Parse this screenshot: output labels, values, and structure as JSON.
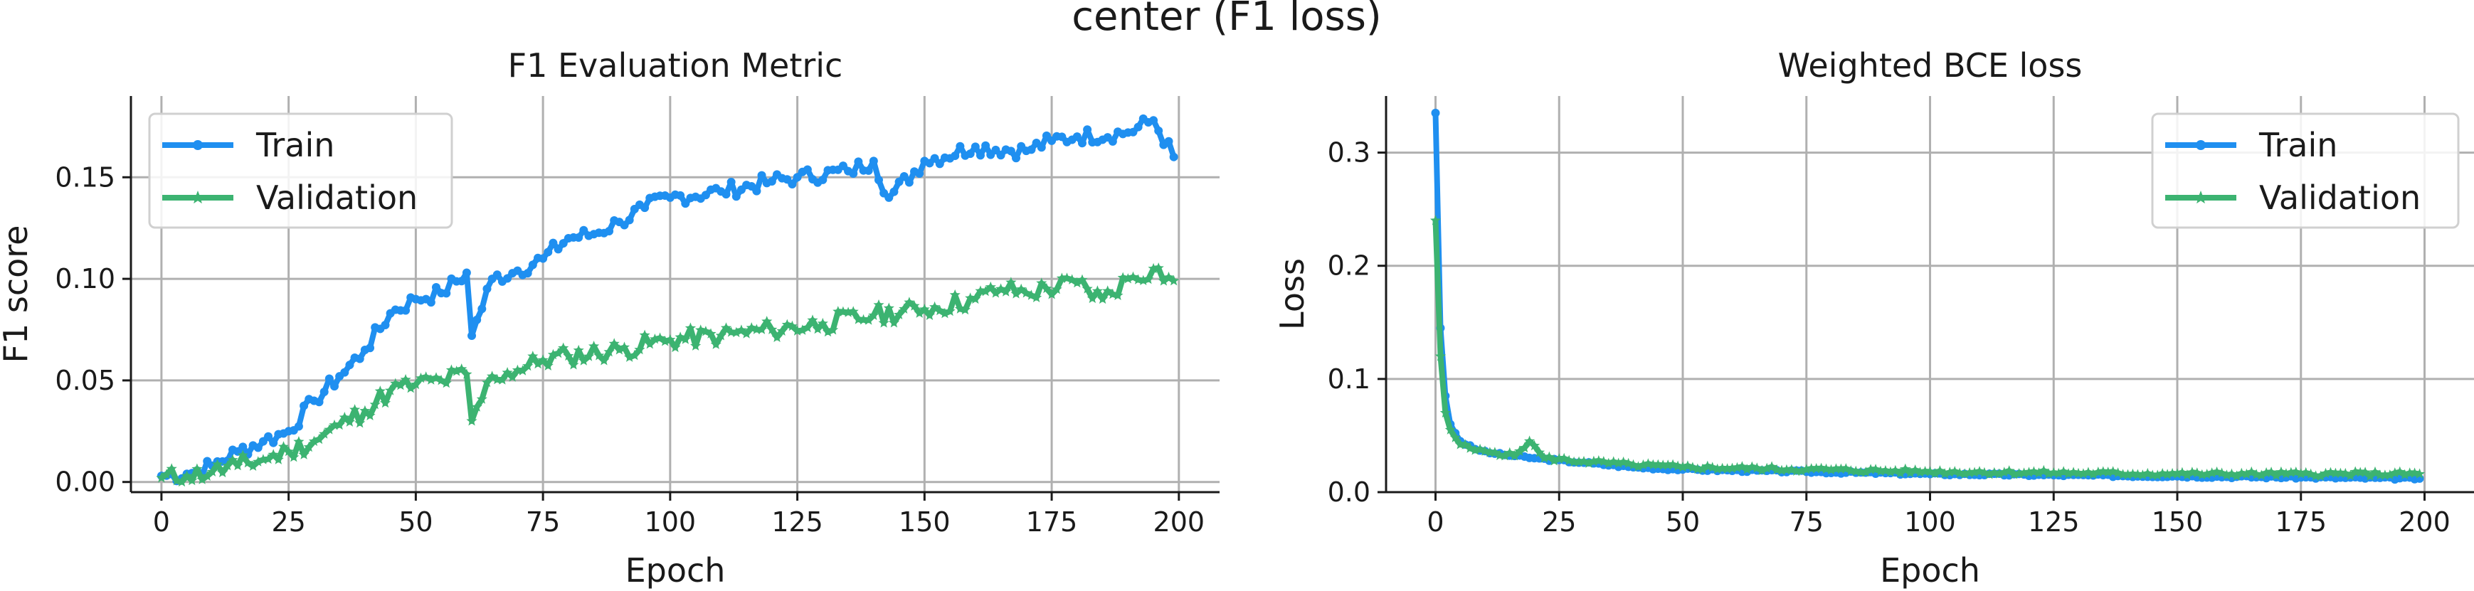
{
  "figure": {
    "title": "center (F1 loss)"
  },
  "colors": {
    "train": "#1f8ff0",
    "validation": "#3cb371"
  },
  "chart_data": [
    {
      "type": "line",
      "title": "F1 Evaluation Metric",
      "xlabel": "Epoch",
      "ylabel": "F1 score",
      "xlim": [
        -6,
        208
      ],
      "ylim": [
        -0.005,
        0.19
      ],
      "xticks": [
        0,
        25,
        50,
        75,
        100,
        125,
        150,
        175,
        200
      ],
      "yticks": [
        0.0,
        0.05,
        0.1,
        0.15
      ],
      "ytick_labels": [
        "0.00",
        "0.05",
        "0.10",
        "0.15"
      ],
      "grid": true,
      "legend": "upper-left",
      "series": [
        {
          "name": "Train",
          "key": "train",
          "marker": "circle",
          "keypoints": [
            [
              0,
              0.003
            ],
            [
              5,
              0.004
            ],
            [
              10,
              0.008
            ],
            [
              15,
              0.015
            ],
            [
              20,
              0.02
            ],
            [
              25,
              0.025
            ],
            [
              30,
              0.04
            ],
            [
              35,
              0.052
            ],
            [
              40,
              0.065
            ],
            [
              45,
              0.083
            ],
            [
              50,
              0.09
            ],
            [
              55,
              0.093
            ],
            [
              60,
              0.103
            ],
            [
              61,
              0.072
            ],
            [
              65,
              0.1
            ],
            [
              70,
              0.104
            ],
            [
              75,
              0.11
            ],
            [
              80,
              0.12
            ],
            [
              85,
              0.122
            ],
            [
              90,
              0.128
            ],
            [
              95,
              0.135
            ],
            [
              100,
              0.14
            ],
            [
              110,
              0.143
            ],
            [
              120,
              0.148
            ],
            [
              125,
              0.15
            ],
            [
              135,
              0.153
            ],
            [
              140,
              0.158
            ],
            [
              143,
              0.14
            ],
            [
              150,
              0.158
            ],
            [
              160,
              0.165
            ],
            [
              170,
              0.163
            ],
            [
              175,
              0.168
            ],
            [
              180,
              0.17
            ],
            [
              190,
              0.172
            ],
            [
              195,
              0.178
            ],
            [
              199,
              0.16
            ]
          ],
          "noise": 0.004,
          "seed": 7
        },
        {
          "name": "Validation",
          "key": "validation",
          "marker": "star",
          "keypoints": [
            [
              0,
              0.002
            ],
            [
              5,
              0.003
            ],
            [
              10,
              0.005
            ],
            [
              15,
              0.008
            ],
            [
              20,
              0.011
            ],
            [
              25,
              0.015
            ],
            [
              30,
              0.02
            ],
            [
              35,
              0.028
            ],
            [
              40,
              0.035
            ],
            [
              45,
              0.045
            ],
            [
              50,
              0.048
            ],
            [
              55,
              0.05
            ],
            [
              60,
              0.053
            ],
            [
              61,
              0.03
            ],
            [
              65,
              0.052
            ],
            [
              70,
              0.055
            ],
            [
              75,
              0.06
            ],
            [
              80,
              0.062
            ],
            [
              90,
              0.065
            ],
            [
              100,
              0.07
            ],
            [
              110,
              0.072
            ],
            [
              120,
              0.075
            ],
            [
              130,
              0.078
            ],
            [
              140,
              0.082
            ],
            [
              150,
              0.085
            ],
            [
              160,
              0.09
            ],
            [
              165,
              0.095
            ],
            [
              170,
              0.093
            ],
            [
              180,
              0.098
            ],
            [
              185,
              0.09
            ],
            [
              190,
              0.1
            ],
            [
              195,
              0.105
            ],
            [
              199,
              0.099
            ]
          ],
          "noise": 0.005,
          "seed": 11
        }
      ]
    },
    {
      "type": "line",
      "title": "Weighted BCE loss",
      "xlabel": "Epoch",
      "ylabel": "Loss",
      "xlim": [
        -10,
        210
      ],
      "ylim": [
        0,
        0.35
      ],
      "xticks": [
        0,
        25,
        50,
        75,
        100,
        125,
        150,
        175,
        200
      ],
      "yticks": [
        0.0,
        0.1,
        0.2,
        0.3
      ],
      "ytick_labels": [
        "0.0",
        "0.1",
        "0.2",
        "0.3"
      ],
      "grid": true,
      "legend": "upper-right",
      "series": [
        {
          "name": "Train",
          "key": "train",
          "marker": "circle",
          "keypoints": [
            [
              0,
              0.335
            ],
            [
              1,
              0.145
            ],
            [
              2,
              0.085
            ],
            [
              3,
              0.06
            ],
            [
              5,
              0.045
            ],
            [
              8,
              0.038
            ],
            [
              12,
              0.034
            ],
            [
              20,
              0.03
            ],
            [
              30,
              0.026
            ],
            [
              40,
              0.022
            ],
            [
              50,
              0.02
            ],
            [
              75,
              0.018
            ],
            [
              100,
              0.016
            ],
            [
              125,
              0.015
            ],
            [
              150,
              0.014
            ],
            [
              175,
              0.013
            ],
            [
              199,
              0.012
            ]
          ],
          "noise": 0.001,
          "seed": 3
        },
        {
          "name": "Validation",
          "key": "validation",
          "marker": "star",
          "keypoints": [
            [
              0,
              0.24
            ],
            [
              1,
              0.12
            ],
            [
              2,
              0.07
            ],
            [
              3,
              0.055
            ],
            [
              5,
              0.042
            ],
            [
              8,
              0.037
            ],
            [
              12,
              0.035
            ],
            [
              16,
              0.032
            ],
            [
              19,
              0.045
            ],
            [
              22,
              0.03
            ],
            [
              30,
              0.027
            ],
            [
              40,
              0.024
            ],
            [
              50,
              0.022
            ],
            [
              75,
              0.02
            ],
            [
              100,
              0.018
            ],
            [
              125,
              0.017
            ],
            [
              150,
              0.016
            ],
            [
              175,
              0.016
            ],
            [
              199,
              0.016
            ]
          ],
          "noise": 0.002,
          "seed": 5
        }
      ]
    }
  ]
}
